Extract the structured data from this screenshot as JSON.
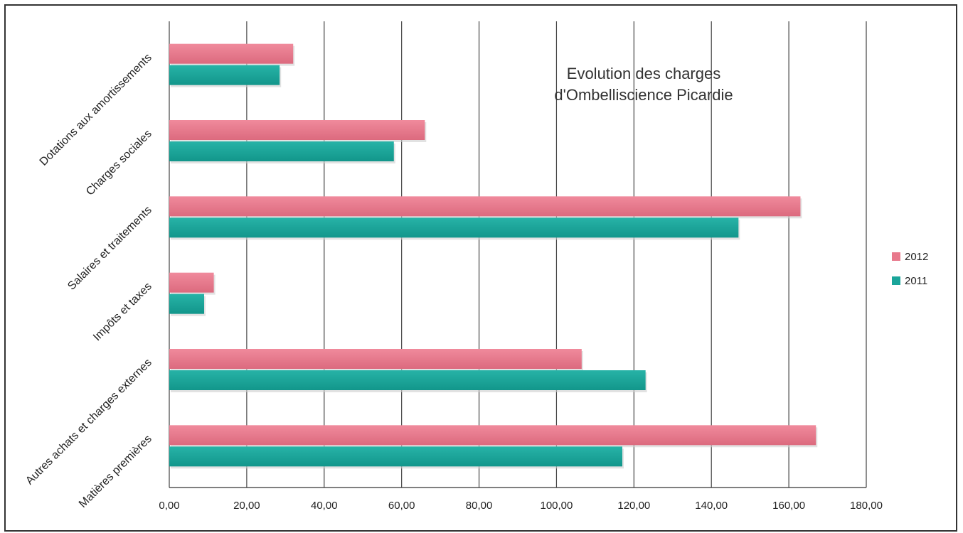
{
  "chart_data": {
    "type": "bar",
    "orientation": "horizontal",
    "title_lines": [
      "Evolution des charges",
      "d'Ombelliscience Picardie"
    ],
    "categories": [
      "Dotations aux amortissements",
      "Charges sociales",
      "Salaires et traitements",
      "Impôts et taxes",
      "Autres achats et  charges externes",
      "Matières premières"
    ],
    "series": [
      {
        "name": "2012",
        "color": "#e8798c",
        "values": [
          32,
          66,
          163,
          11.5,
          106.5,
          167
        ]
      },
      {
        "name": "2011",
        "color": "#1aa59a",
        "values": [
          28.5,
          58,
          147,
          9,
          123,
          117
        ]
      }
    ],
    "xlim": [
      0,
      180
    ],
    "xticks": [
      "0,00",
      "20,00",
      "40,00",
      "60,00",
      "80,00",
      "100,00",
      "120,00",
      "140,00",
      "160,00",
      "180,00"
    ],
    "grid": true,
    "legend_position": "right"
  }
}
